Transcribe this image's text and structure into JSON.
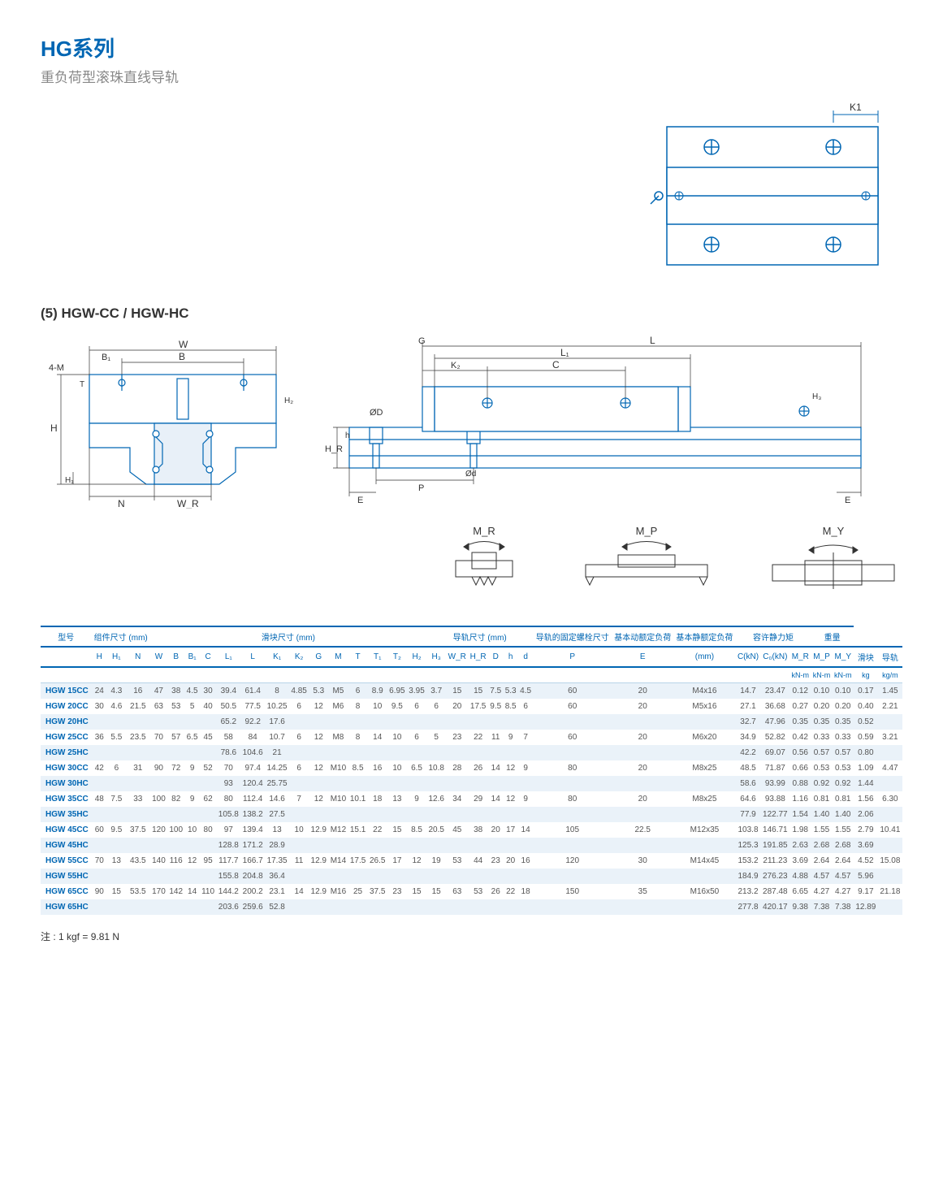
{
  "header": {
    "title": "HG系列",
    "subtitle": "重负荷型滚珠直线导轨",
    "section": "(5) HGW-CC / HGW-HC"
  },
  "footnote": "注 : 1 kgf = 9.81 N",
  "diagram_labels": {
    "top": {
      "K1": "K1"
    },
    "front": {
      "W": "W",
      "B": "B",
      "B1": "B₁",
      "4M": "4-M",
      "H": "H",
      "H1": "H₁",
      "H2": "H₂",
      "T": "T",
      "N": "N",
      "WR": "W_R"
    },
    "side": {
      "G": "G",
      "L": "L",
      "L1": "L₁",
      "C": "C",
      "K2": "K₂",
      "HR": "H_R",
      "h": "h",
      "OD": "ØD",
      "Od": "Ød",
      "E": "E",
      "P": "P",
      "H3": "H₃"
    },
    "moments": {
      "MR": "M_R",
      "MP": "M_P",
      "MY": "M_Y"
    }
  },
  "styling": {
    "accent_color": "#0066b3",
    "row_alt_bg": "#eaf2f9",
    "text_color": "#555",
    "diagram_stroke": "#0066b3",
    "diagram_fill": "#e8f0f8"
  },
  "table": {
    "groups": [
      {
        "label": "型号",
        "span": 1
      },
      {
        "label": "组件尺寸 (mm)",
        "span": 3
      },
      {
        "label": "滑块尺寸 (mm)",
        "span": 14
      },
      {
        "label": "导轨尺寸 (mm)",
        "span": 6
      },
      {
        "label": "导轨的固定螺栓尺寸",
        "span": 1
      },
      {
        "label": "基本动额定负荷",
        "span": 1
      },
      {
        "label": "基本静额定负荷",
        "span": 1
      },
      {
        "label": "容许静力矩",
        "span": 3
      },
      {
        "label": "重量",
        "span": 2
      }
    ],
    "columns": [
      "",
      "H",
      "H₁",
      "N",
      "W",
      "B",
      "B₁",
      "C",
      "L₁",
      "L",
      "K₁",
      "K₂",
      "G",
      "M",
      "T",
      "T₁",
      "T₂",
      "H₂",
      "H₃",
      "W_R",
      "H_R",
      "D",
      "h",
      "d",
      "P",
      "E",
      "(mm)",
      "C(kN)",
      "C₀(kN)",
      "M_R",
      "M_P",
      "M_Y",
      "滑块",
      "导轨"
    ],
    "units_row": [
      "",
      "",
      "",
      "",
      "",
      "",
      "",
      "",
      "",
      "",
      "",
      "",
      "",
      "",
      "",
      "",
      "",
      "",
      "",
      "",
      "",
      "",
      "",
      "",
      "",
      "",
      "",
      "",
      "",
      "kN-m",
      "kN-m",
      "kN-m",
      "kg",
      "kg/m"
    ],
    "rows": [
      [
        "HGW 15CC",
        "24",
        "4.3",
        "16",
        "47",
        "38",
        "4.5",
        "30",
        "39.4",
        "61.4",
        "8",
        "4.85",
        "5.3",
        "M5",
        "6",
        "8.9",
        "6.95",
        "3.95",
        "3.7",
        "15",
        "15",
        "7.5",
        "5.3",
        "4.5",
        "60",
        "20",
        "M4x16",
        "14.7",
        "23.47",
        "0.12",
        "0.10",
        "0.10",
        "0.17",
        "1.45"
      ],
      [
        "HGW 20CC",
        "30",
        "4.6",
        "21.5",
        "63",
        "53",
        "5",
        "40",
        "50.5",
        "77.5",
        "10.25",
        "6",
        "12",
        "M6",
        "8",
        "10",
        "9.5",
        "6",
        "6",
        "20",
        "17.5",
        "9.5",
        "8.5",
        "6",
        "60",
        "20",
        "M5x16",
        "27.1",
        "36.68",
        "0.27",
        "0.20",
        "0.20",
        "0.40",
        "2.21"
      ],
      [
        "HGW 20HC",
        "",
        "",
        "",
        "",
        "",
        "",
        "",
        "65.2",
        "92.2",
        "17.6",
        "",
        "",
        "",
        "",
        "",
        "",
        "",
        "",
        "",
        "",
        "",
        "",
        "",
        "",
        "",
        "",
        "32.7",
        "47.96",
        "0.35",
        "0.35",
        "0.35",
        "0.52",
        ""
      ],
      [
        "HGW 25CC",
        "36",
        "5.5",
        "23.5",
        "70",
        "57",
        "6.5",
        "45",
        "58",
        "84",
        "10.7",
        "6",
        "12",
        "M8",
        "8",
        "14",
        "10",
        "6",
        "5",
        "23",
        "22",
        "11",
        "9",
        "7",
        "60",
        "20",
        "M6x20",
        "34.9",
        "52.82",
        "0.42",
        "0.33",
        "0.33",
        "0.59",
        "3.21"
      ],
      [
        "HGW 25HC",
        "",
        "",
        "",
        "",
        "",
        "",
        "",
        "78.6",
        "104.6",
        "21",
        "",
        "",
        "",
        "",
        "",
        "",
        "",
        "",
        "",
        "",
        "",
        "",
        "",
        "",
        "",
        "",
        "42.2",
        "69.07",
        "0.56",
        "0.57",
        "0.57",
        "0.80",
        ""
      ],
      [
        "HGW 30CC",
        "42",
        "6",
        "31",
        "90",
        "72",
        "9",
        "52",
        "70",
        "97.4",
        "14.25",
        "6",
        "12",
        "M10",
        "8.5",
        "16",
        "10",
        "6.5",
        "10.8",
        "28",
        "26",
        "14",
        "12",
        "9",
        "80",
        "20",
        "M8x25",
        "48.5",
        "71.87",
        "0.66",
        "0.53",
        "0.53",
        "1.09",
        "4.47"
      ],
      [
        "HGW 30HC",
        "",
        "",
        "",
        "",
        "",
        "",
        "",
        "93",
        "120.4",
        "25.75",
        "",
        "",
        "",
        "",
        "",
        "",
        "",
        "",
        "",
        "",
        "",
        "",
        "",
        "",
        "",
        "",
        "58.6",
        "93.99",
        "0.88",
        "0.92",
        "0.92",
        "1.44",
        ""
      ],
      [
        "HGW 35CC",
        "48",
        "7.5",
        "33",
        "100",
        "82",
        "9",
        "62",
        "80",
        "112.4",
        "14.6",
        "7",
        "12",
        "M10",
        "10.1",
        "18",
        "13",
        "9",
        "12.6",
        "34",
        "29",
        "14",
        "12",
        "9",
        "80",
        "20",
        "M8x25",
        "64.6",
        "93.88",
        "1.16",
        "0.81",
        "0.81",
        "1.56",
        "6.30"
      ],
      [
        "HGW 35HC",
        "",
        "",
        "",
        "",
        "",
        "",
        "",
        "105.8",
        "138.2",
        "27.5",
        "",
        "",
        "",
        "",
        "",
        "",
        "",
        "",
        "",
        "",
        "",
        "",
        "",
        "",
        "",
        "",
        "77.9",
        "122.77",
        "1.54",
        "1.40",
        "1.40",
        "2.06",
        ""
      ],
      [
        "HGW 45CC",
        "60",
        "9.5",
        "37.5",
        "120",
        "100",
        "10",
        "80",
        "97",
        "139.4",
        "13",
        "10",
        "12.9",
        "M12",
        "15.1",
        "22",
        "15",
        "8.5",
        "20.5",
        "45",
        "38",
        "20",
        "17",
        "14",
        "105",
        "22.5",
        "M12x35",
        "103.8",
        "146.71",
        "1.98",
        "1.55",
        "1.55",
        "2.79",
        "10.41"
      ],
      [
        "HGW 45HC",
        "",
        "",
        "",
        "",
        "",
        "",
        "",
        "128.8",
        "171.2",
        "28.9",
        "",
        "",
        "",
        "",
        "",
        "",
        "",
        "",
        "",
        "",
        "",
        "",
        "",
        "",
        "",
        "",
        "125.3",
        "191.85",
        "2.63",
        "2.68",
        "2.68",
        "3.69",
        ""
      ],
      [
        "HGW 55CC",
        "70",
        "13",
        "43.5",
        "140",
        "116",
        "12",
        "95",
        "117.7",
        "166.7",
        "17.35",
        "11",
        "12.9",
        "M14",
        "17.5",
        "26.5",
        "17",
        "12",
        "19",
        "53",
        "44",
        "23",
        "20",
        "16",
        "120",
        "30",
        "M14x45",
        "153.2",
        "211.23",
        "3.69",
        "2.64",
        "2.64",
        "4.52",
        "15.08"
      ],
      [
        "HGW 55HC",
        "",
        "",
        "",
        "",
        "",
        "",
        "",
        "155.8",
        "204.8",
        "36.4",
        "",
        "",
        "",
        "",
        "",
        "",
        "",
        "",
        "",
        "",
        "",
        "",
        "",
        "",
        "",
        "",
        "184.9",
        "276.23",
        "4.88",
        "4.57",
        "4.57",
        "5.96",
        ""
      ],
      [
        "HGW 65CC",
        "90",
        "15",
        "53.5",
        "170",
        "142",
        "14",
        "110",
        "144.2",
        "200.2",
        "23.1",
        "14",
        "12.9",
        "M16",
        "25",
        "37.5",
        "23",
        "15",
        "15",
        "63",
        "53",
        "26",
        "22",
        "18",
        "150",
        "35",
        "M16x50",
        "213.2",
        "287.48",
        "6.65",
        "4.27",
        "4.27",
        "9.17",
        "21.18"
      ],
      [
        "HGW 65HC",
        "",
        "",
        "",
        "",
        "",
        "",
        "",
        "203.6",
        "259.6",
        "52.8",
        "",
        "",
        "",
        "",
        "",
        "",
        "",
        "",
        "",
        "",
        "",
        "",
        "",
        "",
        "",
        "",
        "277.8",
        "420.17",
        "9.38",
        "7.38",
        "7.38",
        "12.89",
        ""
      ]
    ]
  }
}
